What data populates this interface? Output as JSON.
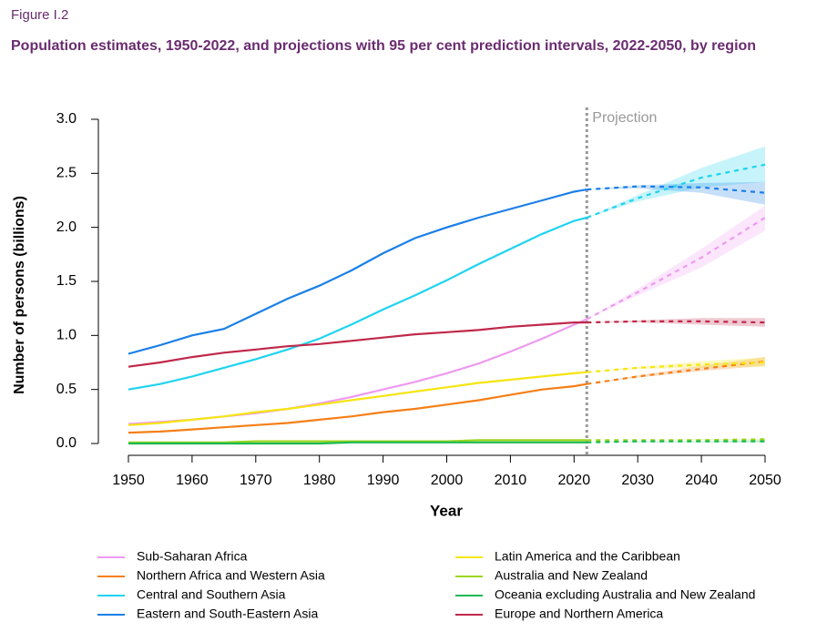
{
  "chart_data": {
    "type": "line",
    "figure_label": "Figure I.2",
    "title": "Population estimates, 1950-2022, and projections with 95 per cent prediction intervals, 2022-2050, by region",
    "x_label": "Year",
    "y_label": "Number of persons (billions)",
    "annotation": "Projection",
    "projection_start": 2022,
    "x": [
      1950,
      1955,
      1960,
      1965,
      1970,
      1975,
      1980,
      1985,
      1990,
      1995,
      2000,
      2005,
      2010,
      2015,
      2020,
      2022
    ],
    "x_projection": [
      2022,
      2030,
      2040,
      2050
    ],
    "xlim": [
      1950,
      2050
    ],
    "ylim": [
      0,
      3
    ],
    "xticks": [
      1950,
      1960,
      1970,
      1980,
      1990,
      2000,
      2010,
      2020,
      2030,
      2040,
      2050
    ],
    "yticks": [
      {
        "value": 0,
        "label": "0.0"
      },
      {
        "value": 0.5,
        "label": "0.5"
      },
      {
        "value": 1,
        "label": "1.0"
      },
      {
        "value": 1.5,
        "label": "1.5"
      },
      {
        "value": 2,
        "label": "2.0"
      },
      {
        "value": 2.5,
        "label": "2.5"
      },
      {
        "value": 3,
        "label": "3.0"
      }
    ],
    "series": [
      {
        "name": "Sub-Saharan Africa",
        "color": "#ee9af0",
        "values": [
          0.18,
          0.2,
          0.22,
          0.25,
          0.28,
          0.32,
          0.37,
          0.43,
          0.5,
          0.57,
          0.65,
          0.74,
          0.85,
          0.97,
          1.1,
          1.15
        ],
        "projection": [
          1.15,
          1.4,
          1.72,
          2.09
        ],
        "lower": [
          1.15,
          1.37,
          1.63,
          1.97
        ],
        "upper": [
          1.15,
          1.43,
          1.8,
          2.2
        ]
      },
      {
        "name": "Northern Africa and Western Asia",
        "color": "#f57f17",
        "values": [
          0.1,
          0.11,
          0.13,
          0.15,
          0.17,
          0.19,
          0.22,
          0.25,
          0.29,
          0.32,
          0.36,
          0.4,
          0.45,
          0.5,
          0.53,
          0.55
        ],
        "projection": [
          0.55,
          0.62,
          0.69,
          0.76
        ],
        "lower": [
          0.55,
          0.61,
          0.67,
          0.72
        ],
        "upper": [
          0.55,
          0.63,
          0.72,
          0.8
        ]
      },
      {
        "name": "Central and Southern Asia",
        "color": "#1fd3f0",
        "values": [
          0.5,
          0.55,
          0.62,
          0.7,
          0.78,
          0.87,
          0.97,
          1.1,
          1.24,
          1.37,
          1.51,
          1.66,
          1.8,
          1.94,
          2.06,
          2.09
        ],
        "projection": [
          2.09,
          2.27,
          2.46,
          2.58
        ],
        "lower": [
          2.09,
          2.24,
          2.37,
          2.42
        ],
        "upper": [
          2.09,
          2.3,
          2.55,
          2.75
        ]
      },
      {
        "name": "Eastern and South-Eastern Asia",
        "color": "#1a7fe8",
        "values": [
          0.83,
          0.91,
          1.0,
          1.06,
          1.2,
          1.34,
          1.46,
          1.6,
          1.76,
          1.9,
          2.0,
          2.09,
          2.17,
          2.25,
          2.33,
          2.35
        ],
        "projection": [
          2.35,
          2.38,
          2.37,
          2.32
        ],
        "lower": [
          2.35,
          2.36,
          2.32,
          2.21
        ],
        "upper": [
          2.35,
          2.39,
          2.41,
          2.42
        ]
      },
      {
        "name": "Latin America and the Caribbean",
        "color": "#f5e50f",
        "values": [
          0.17,
          0.19,
          0.22,
          0.25,
          0.29,
          0.32,
          0.36,
          0.4,
          0.44,
          0.48,
          0.52,
          0.56,
          0.59,
          0.62,
          0.65,
          0.66
        ],
        "projection": [
          0.66,
          0.7,
          0.73,
          0.75
        ],
        "lower": [
          0.66,
          0.69,
          0.7,
          0.71
        ],
        "upper": [
          0.66,
          0.71,
          0.76,
          0.8
        ]
      },
      {
        "name": "Australia and New Zealand",
        "color": "#9bd61c",
        "values": [
          0.01,
          0.01,
          0.01,
          0.01,
          0.02,
          0.02,
          0.02,
          0.02,
          0.02,
          0.02,
          0.02,
          0.03,
          0.03,
          0.03,
          0.03,
          0.03
        ],
        "projection": [
          0.03,
          0.03,
          0.03,
          0.04
        ],
        "lower": [
          0.03,
          0.03,
          0.03,
          0.03
        ],
        "upper": [
          0.03,
          0.03,
          0.04,
          0.04
        ]
      },
      {
        "name": "Oceania excluding Australia and New Zealand",
        "color": "#1db954",
        "values": [
          0,
          0,
          0,
          0,
          0,
          0,
          0,
          0.01,
          0.01,
          0.01,
          0.01,
          0.01,
          0.01,
          0.01,
          0.01,
          0.01
        ],
        "projection": [
          0.01,
          0.02,
          0.02,
          0.02
        ],
        "lower": [
          0.01,
          0.01,
          0.01,
          0.01
        ],
        "upper": [
          0.01,
          0.02,
          0.02,
          0.03
        ]
      },
      {
        "name": "Europe and Northern America",
        "color": "#c0284a",
        "values": [
          0.71,
          0.75,
          0.8,
          0.84,
          0.87,
          0.9,
          0.92,
          0.95,
          0.98,
          1.01,
          1.03,
          1.05,
          1.08,
          1.1,
          1.12,
          1.12
        ],
        "projection": [
          1.12,
          1.13,
          1.13,
          1.12
        ],
        "lower": [
          1.12,
          1.12,
          1.1,
          1.08
        ],
        "upper": [
          1.12,
          1.14,
          1.16,
          1.16
        ]
      }
    ]
  }
}
